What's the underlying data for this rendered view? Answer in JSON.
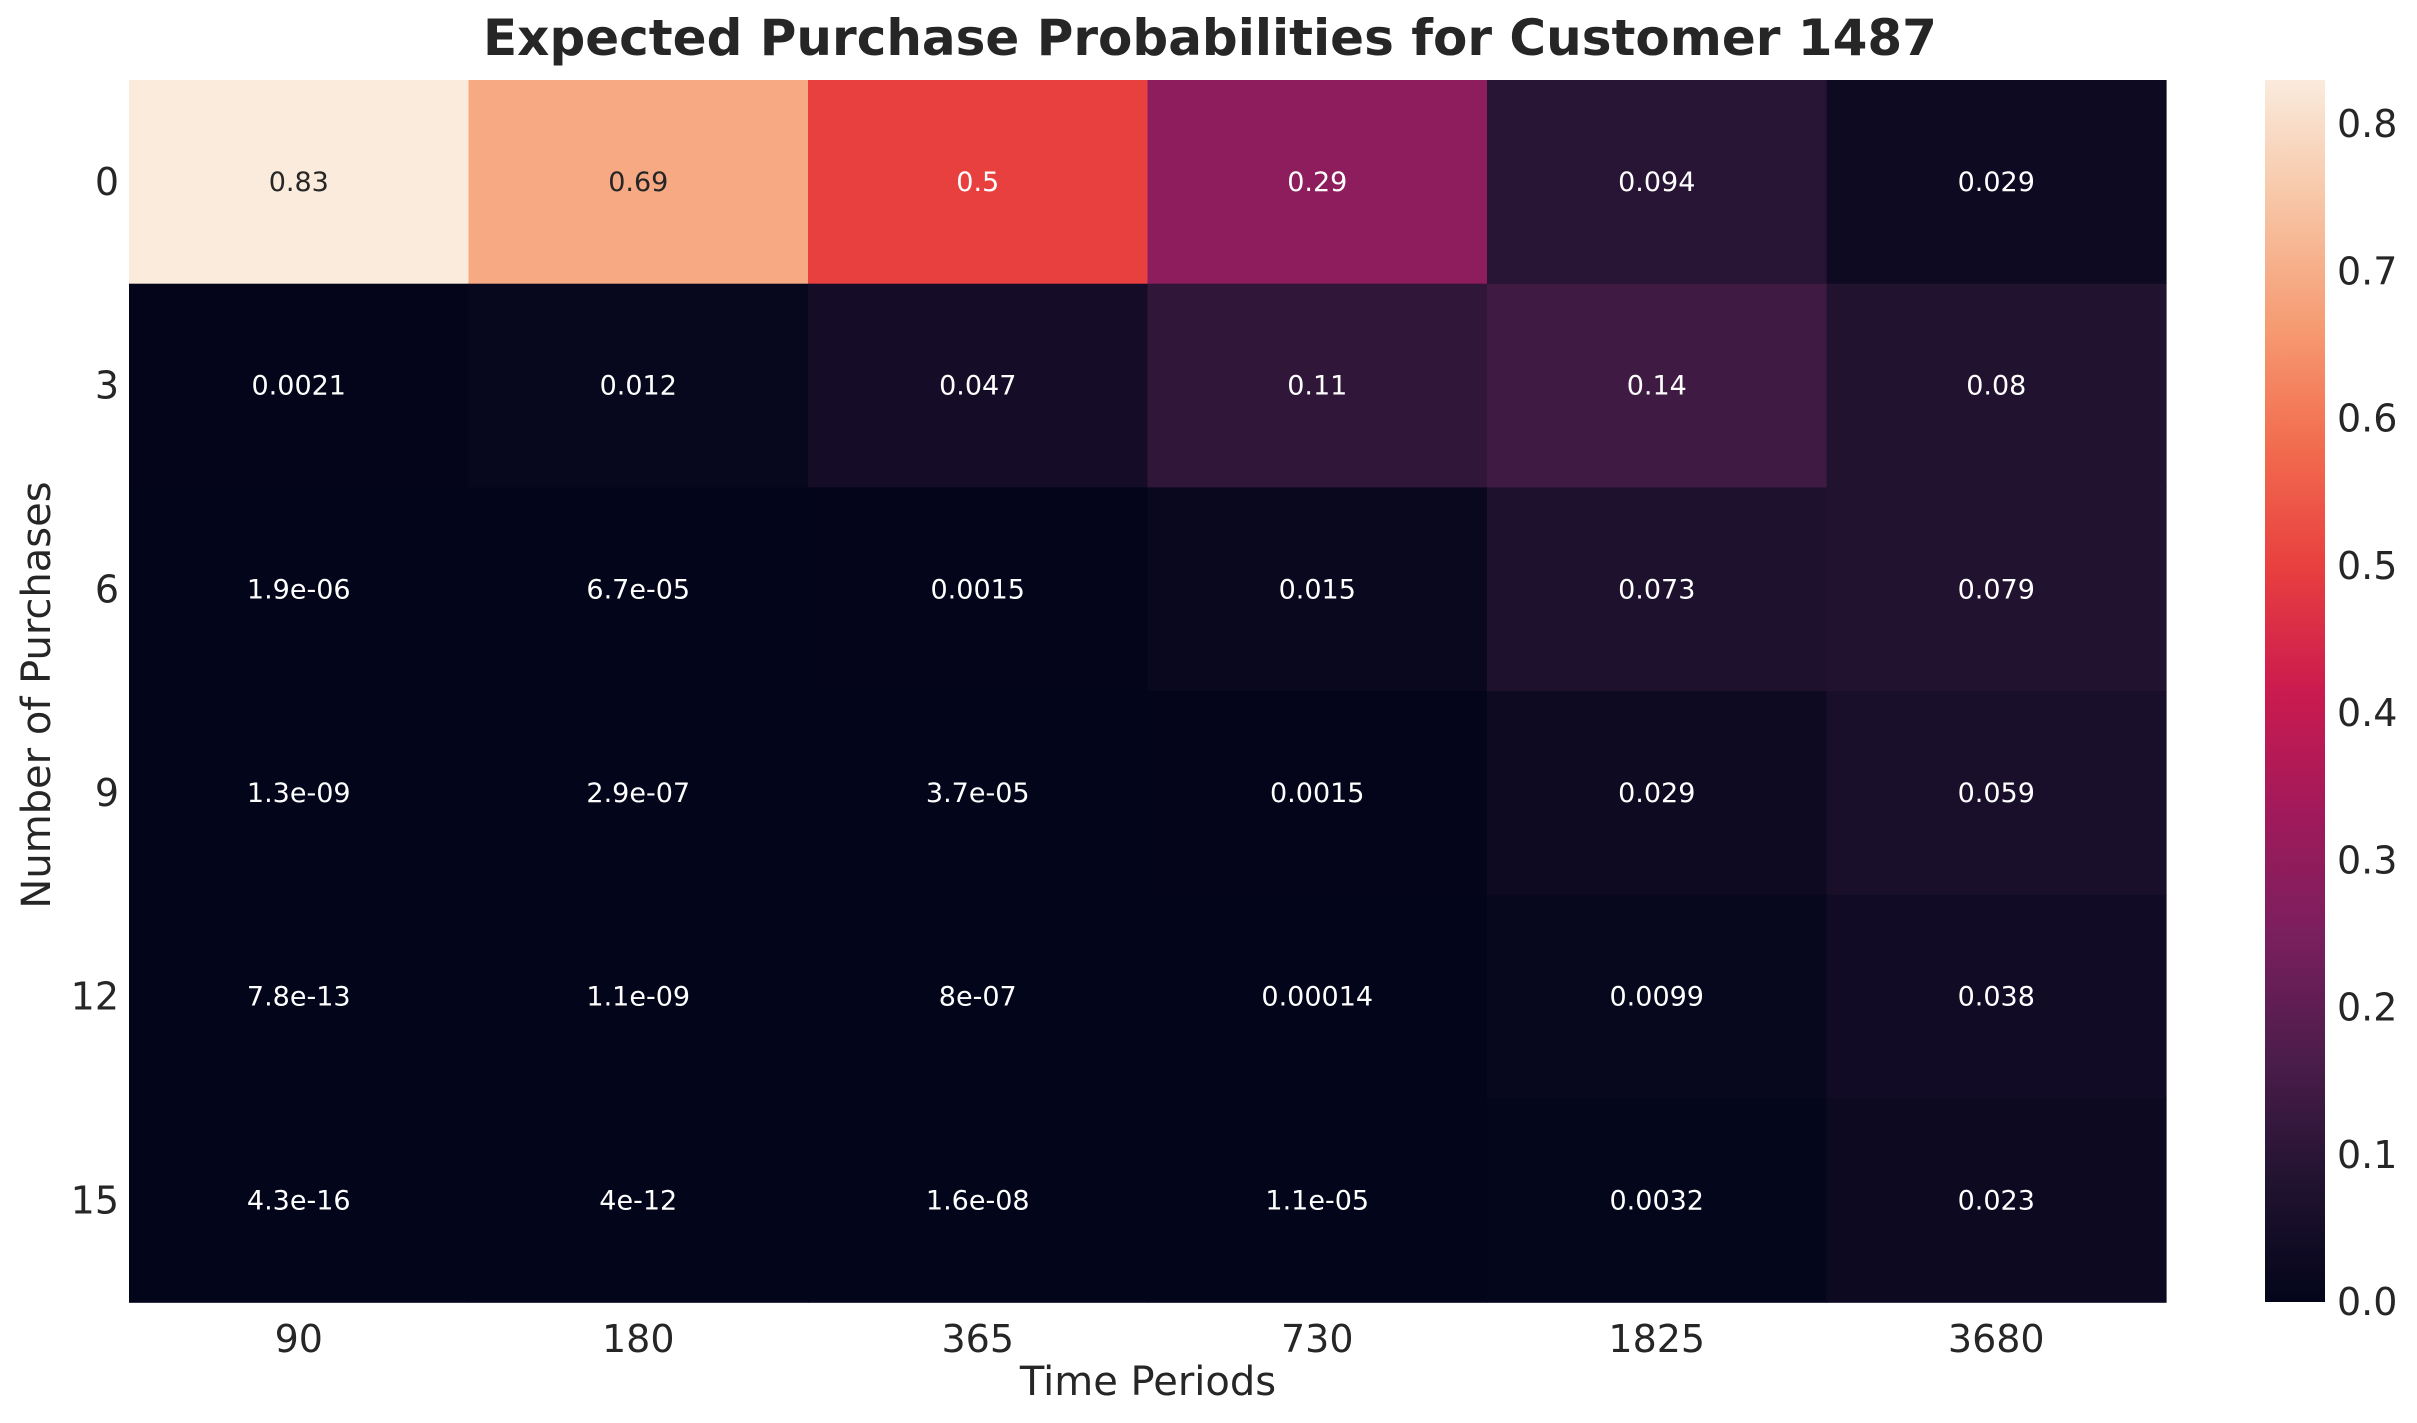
{
  "chart_data": {
    "type": "heatmap",
    "title": "Expected Purchase Probabilities for Customer 1487",
    "xlabel": "Time Periods",
    "ylabel": "Number of Purchases",
    "x_categories": [
      "90",
      "180",
      "365",
      "730",
      "1825",
      "3680"
    ],
    "y_categories": [
      "0",
      "3",
      "6",
      "9",
      "12",
      "15"
    ],
    "values": [
      [
        0.83,
        0.69,
        0.5,
        0.29,
        0.094,
        0.029
      ],
      [
        0.0021,
        0.012,
        0.047,
        0.11,
        0.14,
        0.08
      ],
      [
        1.9e-06,
        6.7e-05,
        0.0015,
        0.015,
        0.073,
        0.079
      ],
      [
        1.3e-09,
        2.9e-07,
        3.7e-05,
        0.0015,
        0.029,
        0.059
      ],
      [
        7.8e-13,
        1.1e-09,
        8e-07,
        0.00014,
        0.0099,
        0.038
      ],
      [
        4.3e-16,
        4e-12,
        1.6e-08,
        1.1e-05,
        0.0032,
        0.023
      ]
    ],
    "annotations": [
      [
        "0.83",
        "0.69",
        "0.5",
        "0.29",
        "0.094",
        "0.029"
      ],
      [
        "0.0021",
        "0.012",
        "0.047",
        "0.11",
        "0.14",
        "0.08"
      ],
      [
        "1.9e-06",
        "6.7e-05",
        "0.0015",
        "0.015",
        "0.073",
        "0.079"
      ],
      [
        "1.3e-09",
        "2.9e-07",
        "3.7e-05",
        "0.0015",
        "0.029",
        "0.059"
      ],
      [
        "7.8e-13",
        "1.1e-09",
        "8e-07",
        "0.00014",
        "0.0099",
        "0.038"
      ],
      [
        "4.3e-16",
        "4e-12",
        "1.6e-08",
        "1.1e-05",
        "0.0032",
        "0.023"
      ]
    ],
    "colorbar": {
      "colormap": "rocket",
      "vmin": 0,
      "vmax": 0.83,
      "ticks": [
        "0.0",
        "0.1",
        "0.2",
        "0.3",
        "0.4",
        "0.5",
        "0.6",
        "0.7",
        "0.8"
      ]
    },
    "grid": false
  }
}
